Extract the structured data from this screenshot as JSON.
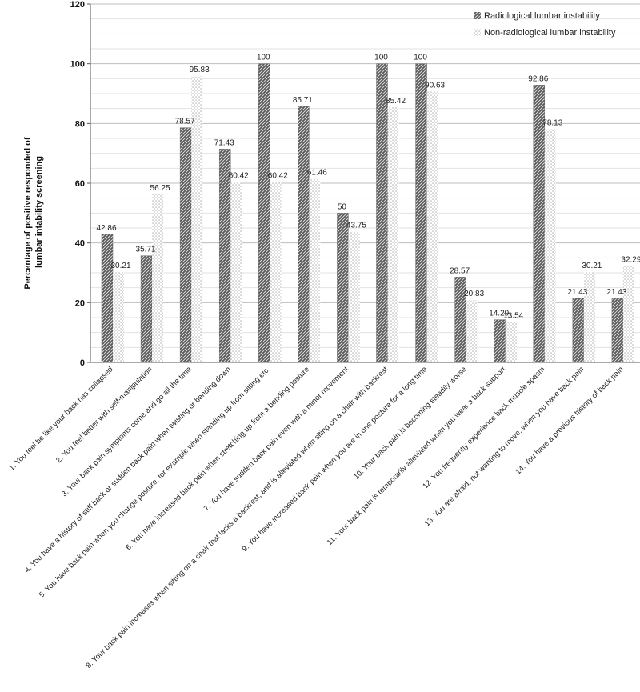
{
  "chart_data": {
    "type": "bar",
    "ylabel_lines": [
      "Percentage of positive responded of",
      "lumbar intability screening"
    ],
    "ylim": [
      0,
      120
    ],
    "yticks": [
      0,
      20,
      40,
      60,
      80,
      100,
      120
    ],
    "grid": true,
    "legend_position": "top-right",
    "categories": [
      "1. You feel be like your back has collapsed",
      "2. You feel better with self-manipulation",
      "3. Your back pain symptoms come and go all the time",
      "4. You have a history of stiff back or sudden back pain when twisting or bending down",
      "5. You have back pain when you change posture, for example when standing up from sitting etc.",
      "6. You have increased back pain when stretching up from a bending posture",
      "7. You have sudden back pain even with a minor movement",
      "8. Your back pain increases when sitting on a chair that lacks a backrest, and is alleviated when siting on a chair with backrest",
      "9. You have increased back pain when you are in one posture for a long time",
      "10. Your back pain is becoming steadily worse",
      "11. Your back pain is temporarily alleviated when you wear a back support",
      "12. You frequently experience back muscle spasm",
      "13. You are afraid, not wanting to move, when you have back pain",
      "14. You have a previous history of back pain"
    ],
    "series": [
      {
        "name": "Radiological lumbar instability",
        "values": [
          42.86,
          35.71,
          78.57,
          71.43,
          100,
          85.71,
          50,
          100,
          100,
          28.57,
          14.29,
          92.86,
          21.43,
          21.43
        ],
        "labels": [
          "42.86",
          "35.71",
          "78.57",
          "71.43",
          "100",
          "85.71",
          "50",
          "100",
          "100",
          "28.57",
          "14.29",
          "92.86",
          "21.43",
          "21.43"
        ]
      },
      {
        "name": "Non-radiological lumbar instability",
        "values": [
          30.21,
          56.25,
          95.83,
          60.42,
          60.42,
          61.46,
          43.75,
          85.42,
          90.63,
          20.83,
          13.54,
          78.13,
          30.21,
          32.29
        ],
        "labels": [
          "30.21",
          "56.25",
          "95.83",
          "60.42",
          "60.42",
          "61.46",
          "43.75",
          "85.42",
          "90.63",
          "20.83",
          "13.54",
          "78.13",
          "30.21",
          "32.29"
        ]
      }
    ]
  }
}
